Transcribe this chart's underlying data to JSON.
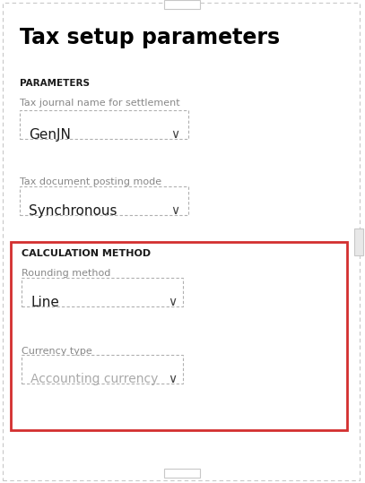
{
  "title": "Tax setup parameters",
  "bg_color": "#ffffff",
  "outer_border_color": "#c8c8c8",
  "section1_label": "PARAMETERS",
  "field1_label": "Tax journal name for settlement",
  "field1_value": "GenJN",
  "field2_label": "Tax document posting mode",
  "field2_value": "Synchronous",
  "section2_label": "CALCULATION METHOD",
  "section2_border_color": "#d32f2f",
  "field3_label": "Rounding method",
  "field3_value": "Line",
  "field4_label": "Currency type",
  "field4_value": "Accounting currency",
  "field4_text_color": "#aaaaaa",
  "dropdown_border_color": "#b0b0b0",
  "label_color": "#888888",
  "value_color": "#1a1a1a",
  "section_label_color": "#1a1a1a",
  "title_color": "#000000",
  "chevron_color": "#444444",
  "top_small_rect_fill": "#ffffff",
  "small_rect_border": "#c8c8c8",
  "right_small_rect_fill": "#e8e8e8"
}
